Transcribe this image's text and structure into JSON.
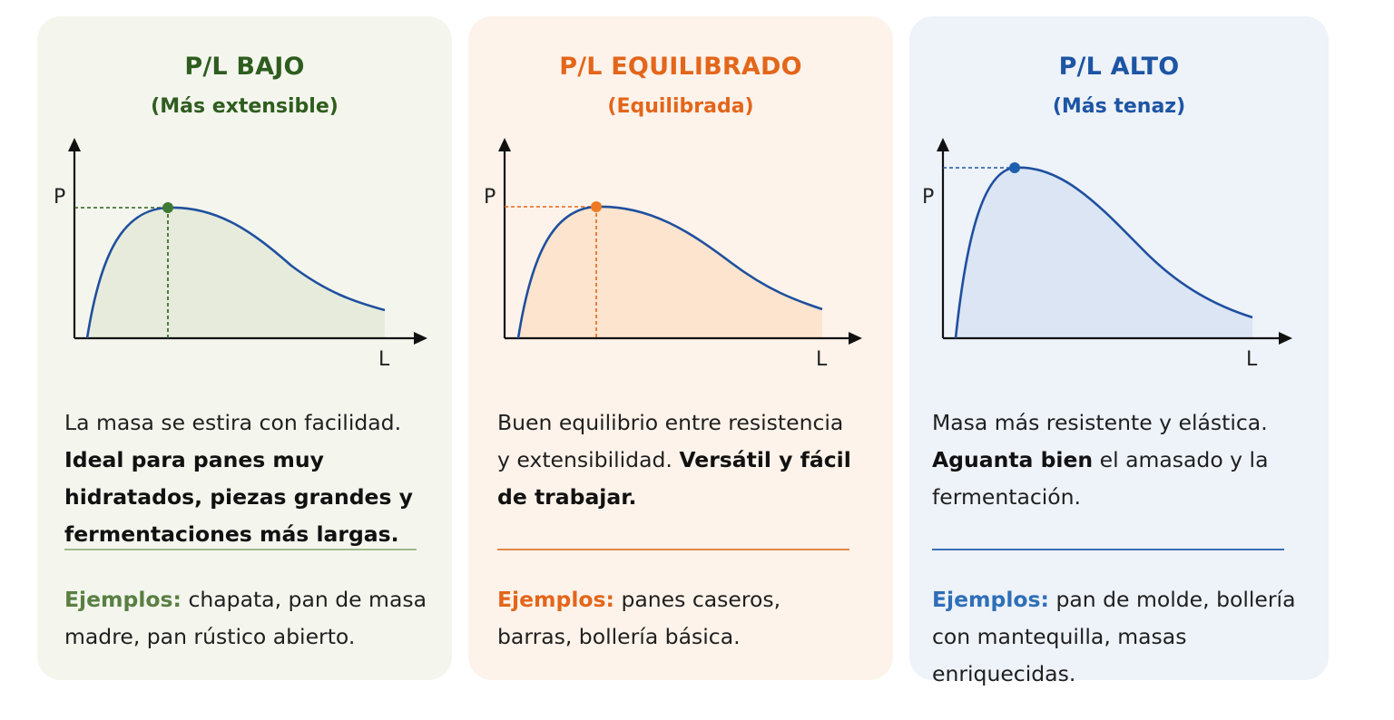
{
  "cards": [
    {
      "title": "P/L BAJO",
      "subtitle": "(Más extensible)",
      "accent": "#2f5d1f",
      "axis_y": "P",
      "axis_x": "L",
      "desc_plain": "La masa se estira con facilidad.",
      "desc_bold": "Ideal para panes muy hidratados, piezas grandes y fermentaciones más largas.",
      "examples_label": "Ejemplos:",
      "examples_text": "chapata, pan de masa madre, pan rústico abierto."
    },
    {
      "title": "P/L EQUILIBRADO",
      "subtitle": "(Equilibrada)",
      "accent": "#e3661b",
      "axis_y": "P",
      "axis_x": "L",
      "desc_plain": "Buen equilibrio entre resistencia y extensibilidad.",
      "desc_bold": "Versátil y fácil de trabajar.",
      "examples_label": "Ejemplos:",
      "examples_text": "panes caseros, barras, bollería básica."
    },
    {
      "title": "P/L ALTO",
      "subtitle": "(Más tenaz)",
      "accent": "#1d55a3",
      "axis_y": "P",
      "axis_x": "L",
      "desc_bold": "Masa más resistente y elástica. Aguanta bien",
      "desc_plain": "Masa más resistente y elástica.",
      "desc_bold_inline": "Aguanta bien",
      "desc_after": "el amasado y la fermentación.",
      "examples_label": "Ejemplos:",
      "examples_text": "pan de molde, bollería con mantequilla, masas enriquecidas."
    }
  ]
}
